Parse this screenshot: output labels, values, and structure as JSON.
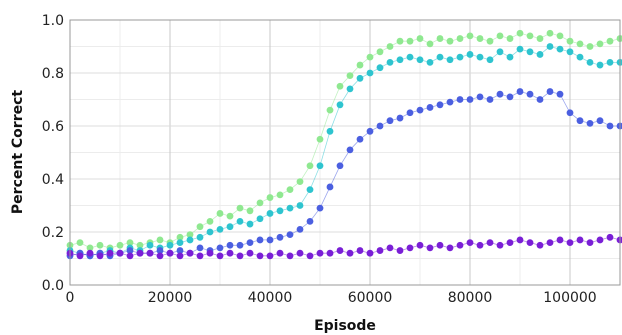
{
  "chart_data": {
    "type": "scatter",
    "title": "",
    "xlabel": "Episode",
    "ylabel": "Percent Correct",
    "xlim": [
      0,
      110000
    ],
    "ylim": [
      0.0,
      1.0
    ],
    "xticks": [
      0,
      20000,
      40000,
      60000,
      80000,
      100000
    ],
    "yticks": [
      0.0,
      0.2,
      0.4,
      0.6,
      0.8,
      1.0
    ],
    "xtick_labels": [
      "0",
      "20000",
      "40000",
      "60000",
      "80000",
      "100000"
    ],
    "ytick_labels": [
      "0.0",
      "0.2",
      "0.4",
      "0.6",
      "0.8",
      "1.0"
    ],
    "grid": true,
    "legend": "none",
    "series": [
      {
        "color": "#8fe890",
        "x": [
          0,
          2000,
          4000,
          6000,
          8000,
          10000,
          12000,
          14000,
          16000,
          18000,
          20000,
          22000,
          24000,
          26000,
          28000,
          30000,
          32000,
          34000,
          36000,
          38000,
          40000,
          42000,
          44000,
          46000,
          48000,
          50000,
          52000,
          54000,
          56000,
          58000,
          60000,
          62000,
          64000,
          66000,
          68000,
          70000,
          72000,
          74000,
          76000,
          78000,
          80000,
          82000,
          84000,
          86000,
          88000,
          90000,
          92000,
          94000,
          96000,
          98000,
          100000,
          102000,
          104000,
          106000,
          108000,
          110000
        ],
        "values": [
          0.15,
          0.16,
          0.14,
          0.15,
          0.14,
          0.15,
          0.16,
          0.15,
          0.16,
          0.17,
          0.16,
          0.18,
          0.19,
          0.22,
          0.24,
          0.27,
          0.26,
          0.29,
          0.28,
          0.31,
          0.33,
          0.34,
          0.36,
          0.39,
          0.45,
          0.55,
          0.66,
          0.75,
          0.79,
          0.83,
          0.86,
          0.88,
          0.9,
          0.92,
          0.92,
          0.93,
          0.91,
          0.93,
          0.92,
          0.93,
          0.94,
          0.93,
          0.92,
          0.94,
          0.93,
          0.95,
          0.94,
          0.93,
          0.95,
          0.94,
          0.92,
          0.91,
          0.9,
          0.91,
          0.92,
          0.93
        ]
      },
      {
        "color": "#2ec4cf",
        "x": [
          0,
          2000,
          4000,
          6000,
          8000,
          10000,
          12000,
          14000,
          16000,
          18000,
          20000,
          22000,
          24000,
          26000,
          28000,
          30000,
          32000,
          34000,
          36000,
          38000,
          40000,
          42000,
          44000,
          46000,
          48000,
          50000,
          52000,
          54000,
          56000,
          58000,
          60000,
          62000,
          64000,
          66000,
          68000,
          70000,
          72000,
          74000,
          76000,
          78000,
          80000,
          82000,
          84000,
          86000,
          88000,
          90000,
          92000,
          94000,
          96000,
          98000,
          100000,
          102000,
          104000,
          106000,
          108000,
          110000
        ],
        "values": [
          0.13,
          0.12,
          0.11,
          0.12,
          0.13,
          0.12,
          0.14,
          0.13,
          0.15,
          0.14,
          0.15,
          0.16,
          0.17,
          0.18,
          0.2,
          0.21,
          0.22,
          0.24,
          0.23,
          0.25,
          0.27,
          0.28,
          0.29,
          0.3,
          0.36,
          0.45,
          0.58,
          0.68,
          0.74,
          0.78,
          0.8,
          0.82,
          0.84,
          0.85,
          0.86,
          0.85,
          0.84,
          0.86,
          0.85,
          0.86,
          0.87,
          0.86,
          0.85,
          0.88,
          0.86,
          0.89,
          0.88,
          0.87,
          0.9,
          0.89,
          0.88,
          0.86,
          0.84,
          0.83,
          0.84,
          0.84
        ]
      },
      {
        "color": "#4b5fe0",
        "x": [
          0,
          2000,
          4000,
          6000,
          8000,
          10000,
          12000,
          14000,
          16000,
          18000,
          20000,
          22000,
          24000,
          26000,
          28000,
          30000,
          32000,
          34000,
          36000,
          38000,
          40000,
          42000,
          44000,
          46000,
          48000,
          50000,
          52000,
          54000,
          56000,
          58000,
          60000,
          62000,
          64000,
          66000,
          68000,
          70000,
          72000,
          74000,
          76000,
          78000,
          80000,
          82000,
          84000,
          86000,
          88000,
          90000,
          92000,
          94000,
          96000,
          98000,
          100000,
          102000,
          104000,
          106000,
          108000,
          110000
        ],
        "values": [
          0.11,
          0.12,
          0.11,
          0.12,
          0.11,
          0.12,
          0.13,
          0.12,
          0.12,
          0.13,
          0.12,
          0.13,
          0.12,
          0.14,
          0.13,
          0.14,
          0.15,
          0.15,
          0.16,
          0.17,
          0.17,
          0.18,
          0.19,
          0.21,
          0.24,
          0.29,
          0.37,
          0.45,
          0.51,
          0.55,
          0.58,
          0.6,
          0.62,
          0.63,
          0.65,
          0.66,
          0.67,
          0.68,
          0.69,
          0.7,
          0.7,
          0.71,
          0.7,
          0.72,
          0.71,
          0.73,
          0.72,
          0.7,
          0.73,
          0.72,
          0.65,
          0.62,
          0.61,
          0.62,
          0.6,
          0.6
        ]
      },
      {
        "color": "#7a1fd6",
        "x": [
          0,
          2000,
          4000,
          6000,
          8000,
          10000,
          12000,
          14000,
          16000,
          18000,
          20000,
          22000,
          24000,
          26000,
          28000,
          30000,
          32000,
          34000,
          36000,
          38000,
          40000,
          42000,
          44000,
          46000,
          48000,
          50000,
          52000,
          54000,
          56000,
          58000,
          60000,
          62000,
          64000,
          66000,
          68000,
          70000,
          72000,
          74000,
          76000,
          78000,
          80000,
          82000,
          84000,
          86000,
          88000,
          90000,
          92000,
          94000,
          96000,
          98000,
          100000,
          102000,
          104000,
          106000,
          108000,
          110000
        ],
        "values": [
          0.12,
          0.11,
          0.12,
          0.11,
          0.12,
          0.12,
          0.11,
          0.12,
          0.12,
          0.11,
          0.12,
          0.11,
          0.12,
          0.11,
          0.12,
          0.11,
          0.12,
          0.11,
          0.12,
          0.11,
          0.11,
          0.12,
          0.11,
          0.12,
          0.11,
          0.12,
          0.12,
          0.13,
          0.12,
          0.13,
          0.12,
          0.13,
          0.14,
          0.13,
          0.14,
          0.15,
          0.14,
          0.15,
          0.14,
          0.15,
          0.16,
          0.15,
          0.16,
          0.15,
          0.16,
          0.17,
          0.16,
          0.15,
          0.16,
          0.17,
          0.16,
          0.17,
          0.16,
          0.17,
          0.18,
          0.17
        ]
      }
    ]
  }
}
